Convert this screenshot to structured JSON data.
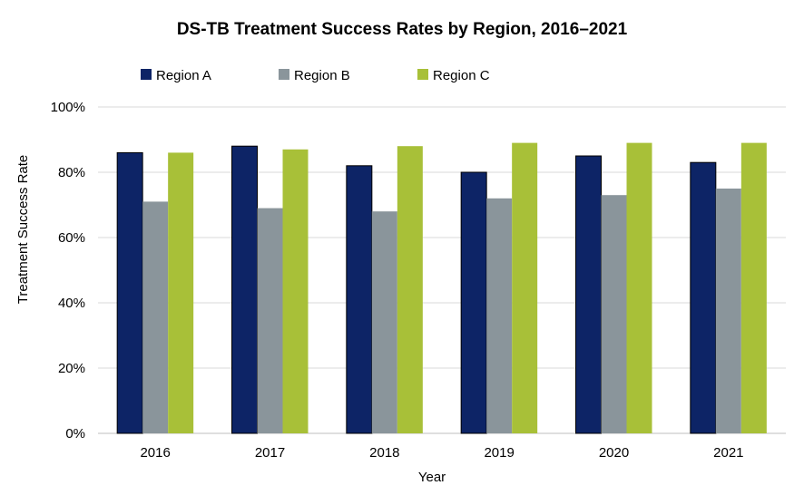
{
  "chart_data": {
    "type": "bar",
    "title": "DS-TB Treatment Success Rates by Region, 2016–2021",
    "xlabel": "Year",
    "ylabel": "Treatment Success Rate",
    "categories": [
      "2016",
      "2017",
      "2018",
      "2019",
      "2020",
      "2021"
    ],
    "ylim": [
      0,
      100
    ],
    "yticks": [
      0,
      20,
      40,
      60,
      80,
      100
    ],
    "ytick_labels": [
      "0%",
      "20%",
      "40%",
      "60%",
      "80%",
      "100%"
    ],
    "grid": true,
    "legend_position": "top-left",
    "series": [
      {
        "name": "Region A",
        "color": "#0d2466",
        "values": [
          86,
          88,
          82,
          80,
          85,
          83
        ]
      },
      {
        "name": "Region B",
        "color": "#8a959b",
        "values": [
          71,
          69,
          68,
          72,
          73,
          75
        ]
      },
      {
        "name": "Region C",
        "color": "#a8c038",
        "values": [
          86,
          87,
          88,
          89,
          89,
          89
        ]
      }
    ]
  }
}
